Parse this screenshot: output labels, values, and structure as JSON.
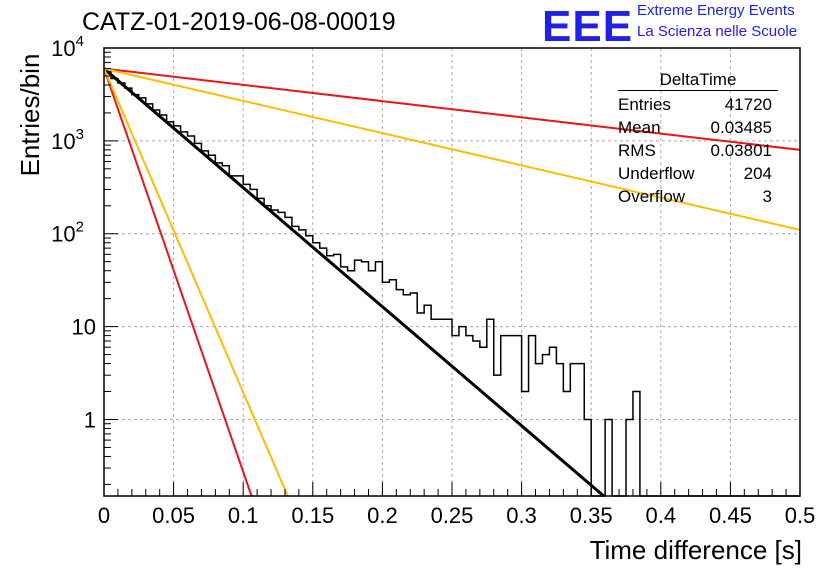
{
  "header": {
    "title": "CATZ-01-2019-06-08-00019",
    "logo_text": "EEE",
    "logo_line1": "Extreme Energy Events",
    "logo_line2": "La Scienza nelle Scuole",
    "logo_color": "#1f22e6"
  },
  "stats_box": {
    "title": "DeltaTime",
    "rows": [
      {
        "label": "Entries",
        "value": "41720"
      },
      {
        "label": "Mean",
        "value": "0.03485"
      },
      {
        "label": "RMS",
        "value": "0.03801"
      },
      {
        "label": "Underflow",
        "value": "204"
      },
      {
        "label": "Overflow",
        "value": "3"
      }
    ]
  },
  "chart_data": {
    "type": "histogram",
    "xlabel": "Time difference [s]",
    "ylabel": "Entries/bin",
    "xlim": [
      0,
      0.5
    ],
    "ylim": [
      0.15,
      10000
    ],
    "yscale": "log",
    "grid": true,
    "x_ticks": [
      "0",
      "0.05",
      "0.1",
      "0.15",
      "0.2",
      "0.25",
      "0.3",
      "0.35",
      "0.4",
      "0.45",
      "0.5"
    ],
    "y_ticks": [
      {
        "value": 1,
        "label": "1"
      },
      {
        "value": 10,
        "label": "10"
      },
      {
        "value": 100,
        "label": "10^2"
      },
      {
        "value": 1000,
        "label": "10^3"
      },
      {
        "value": 10000,
        "label": "10^4"
      }
    ],
    "bin_width": 0.005,
    "histogram_values": [
      5600,
      4700,
      4200,
      3700,
      3150,
      2900,
      2500,
      2150,
      1900,
      1600,
      1450,
      1250,
      1130,
      940,
      780,
      700,
      580,
      540,
      420,
      420,
      340,
      300,
      240,
      200,
      180,
      170,
      150,
      120,
      110,
      95,
      80,
      70,
      58,
      60,
      44,
      40,
      52,
      50,
      40,
      50,
      30,
      32,
      25,
      22,
      23,
      14,
      17,
      12,
      12,
      12,
      8,
      10,
      8,
      7,
      6,
      12,
      3,
      8,
      8,
      8,
      2,
      8,
      4,
      5,
      6,
      4,
      2,
      4,
      4,
      1,
      0,
      0,
      1,
      0,
      0,
      1,
      2,
      0,
      0,
      0,
      0,
      0,
      0,
      0,
      0,
      0,
      0,
      0,
      0,
      0,
      0,
      0,
      0,
      0,
      0,
      0,
      0,
      0,
      0,
      0
    ],
    "series": [
      {
        "type": "fit",
        "color": "#000000",
        "points": [
          [
            0,
            6000
          ],
          [
            0.359,
            0.15
          ]
        ]
      },
      {
        "type": "fit",
        "color": "#e8151b",
        "points": [
          [
            0,
            6000
          ],
          [
            0.5,
            800
          ]
        ]
      },
      {
        "type": "fit",
        "color": "#ffbd00",
        "points": [
          [
            0,
            6000
          ],
          [
            0.5,
            110
          ]
        ]
      },
      {
        "type": "fit",
        "color": "#e8151b",
        "points": [
          [
            0,
            6000
          ],
          [
            0.106,
            0.15
          ]
        ]
      },
      {
        "type": "fit",
        "color": "#ffbd00",
        "points": [
          [
            0,
            6000
          ],
          [
            0.132,
            0.15
          ]
        ]
      }
    ]
  }
}
